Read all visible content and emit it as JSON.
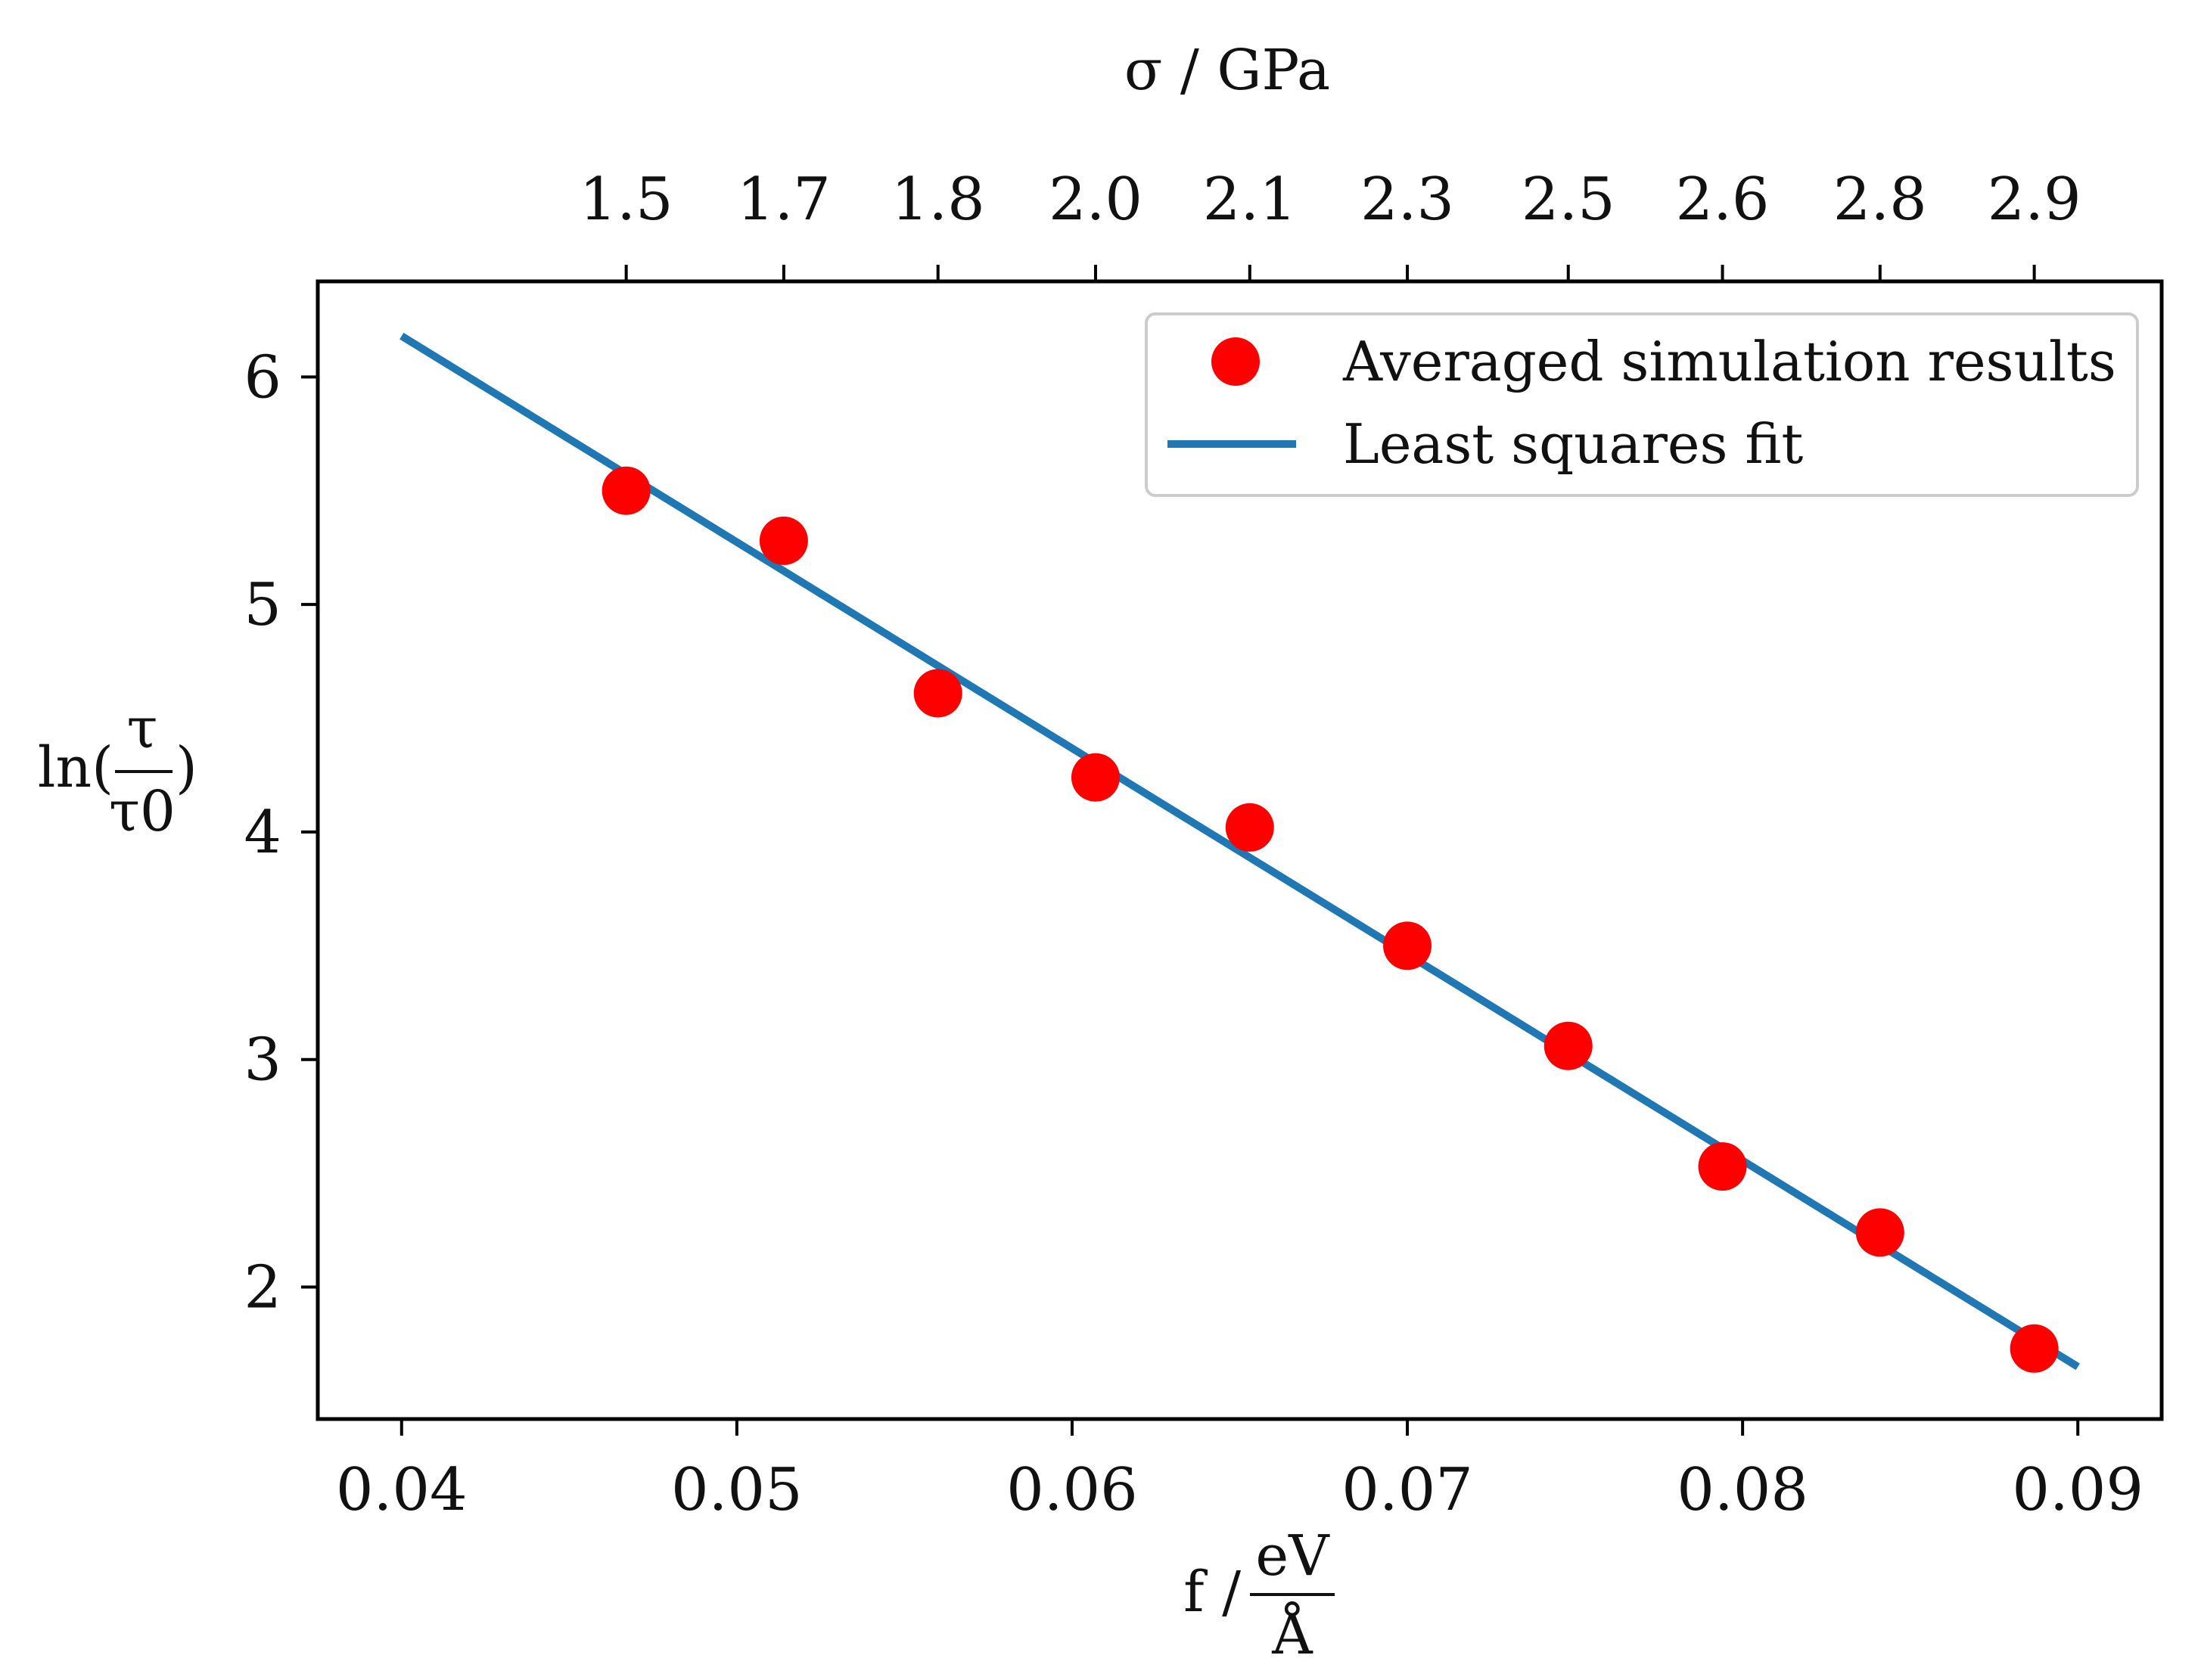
{
  "chart_data": {
    "type": "scatter",
    "title": "",
    "xlabel": {
      "prefix": "f / ",
      "numerator": "eV",
      "denominator": "Å"
    },
    "ylabel": {
      "prefix": "ln(",
      "numerator": "τ",
      "denominator": "τ0",
      "suffix": ")"
    },
    "top_xlabel": "σ / GPa",
    "xlim": [
      0.0375,
      0.0925
    ],
    "ylim": [
      1.42,
      6.42
    ],
    "x_ticks": [
      0.04,
      0.05,
      0.06,
      0.07,
      0.08,
      0.09
    ],
    "x_tick_labels": [
      "0.04",
      "0.05",
      "0.06",
      "0.07",
      "0.08",
      "0.09"
    ],
    "y_ticks": [
      2,
      3,
      4,
      5,
      6
    ],
    "y_tick_labels": [
      "2",
      "3",
      "4",
      "5",
      "6"
    ],
    "top_ticks": [
      0.0467,
      0.0514,
      0.056,
      0.0607,
      0.0653,
      0.07,
      0.0748,
      0.0794,
      0.0841,
      0.0887
    ],
    "top_tick_labels": [
      "1.5",
      "1.7",
      "1.8",
      "2.0",
      "2.1",
      "2.3",
      "2.5",
      "2.6",
      "2.8",
      "2.9"
    ],
    "grid": false,
    "legend_position": "top-right",
    "series": [
      {
        "name": "Averaged simulation results",
        "kind": "scatter",
        "color": "#ff0000",
        "x": [
          0.0467,
          0.0514,
          0.056,
          0.0607,
          0.0653,
          0.07,
          0.0748,
          0.0794,
          0.0841,
          0.0887
        ],
        "y": [
          5.5,
          5.28,
          4.61,
          4.24,
          4.02,
          3.5,
          3.06,
          2.53,
          2.24,
          1.73
        ]
      },
      {
        "name": "Least squares fit",
        "kind": "line",
        "color": "#1f77b4",
        "x": [
          0.04,
          0.09
        ],
        "y": [
          6.18,
          1.65
        ]
      }
    ]
  }
}
